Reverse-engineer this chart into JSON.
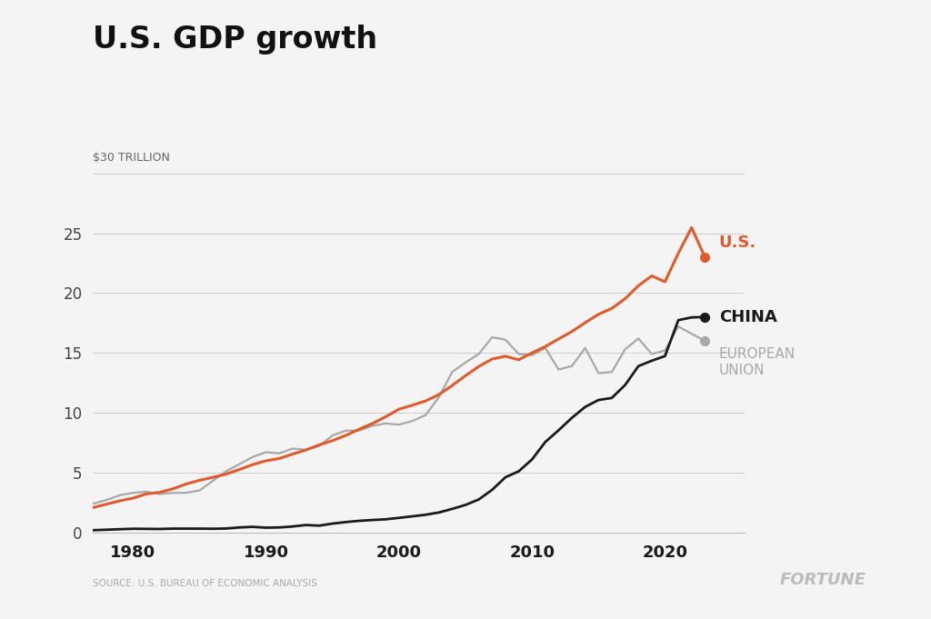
{
  "title": "U.S. GDP growth",
  "ylabel_top": "$30 TRILLION",
  "source": "SOURCE: U.S. BUREAU OF ECONOMIC ANALYSIS",
  "fortune": "FORTUNE",
  "background_color": "#f4f4f4",
  "us_color": "#e05a2b",
  "china_color": "#1a1a1a",
  "eu_color": "#a8a8a8",
  "us_label": "U.S.",
  "china_label": "CHINA",
  "eu_label": "EUROPEAN\nUNION",
  "years": [
    1977,
    1978,
    1979,
    1980,
    1981,
    1982,
    1983,
    1984,
    1985,
    1986,
    1987,
    1988,
    1989,
    1990,
    1991,
    1992,
    1993,
    1994,
    1995,
    1996,
    1997,
    1998,
    1999,
    2000,
    2001,
    2002,
    2003,
    2004,
    2005,
    2006,
    2007,
    2008,
    2009,
    2010,
    2011,
    2012,
    2013,
    2014,
    2015,
    2016,
    2017,
    2018,
    2019,
    2020,
    2021,
    2022,
    2023
  ],
  "us_gdp": [
    2.07,
    2.35,
    2.63,
    2.86,
    3.21,
    3.34,
    3.64,
    4.04,
    4.35,
    4.59,
    4.87,
    5.25,
    5.66,
    5.98,
    6.17,
    6.54,
    6.88,
    7.31,
    7.66,
    8.1,
    8.61,
    9.09,
    9.66,
    10.29,
    10.62,
    10.98,
    11.51,
    12.27,
    13.09,
    13.86,
    14.48,
    14.72,
    14.42,
    15.0,
    15.52,
    16.16,
    16.78,
    17.52,
    18.22,
    18.71,
    19.52,
    20.61,
    21.43,
    20.94,
    23.32,
    25.46,
    23.0
  ],
  "china_gdp": [
    0.18,
    0.22,
    0.26,
    0.3,
    0.29,
    0.28,
    0.31,
    0.31,
    0.31,
    0.3,
    0.32,
    0.41,
    0.46,
    0.39,
    0.41,
    0.49,
    0.61,
    0.56,
    0.73,
    0.86,
    0.96,
    1.03,
    1.09,
    1.21,
    1.34,
    1.47,
    1.66,
    1.96,
    2.29,
    2.75,
    3.55,
    4.6,
    5.1,
    6.09,
    7.55,
    8.53,
    9.57,
    10.48,
    11.06,
    11.23,
    12.31,
    13.89,
    14.34,
    14.73,
    17.73,
    17.96,
    18.0
  ],
  "eu_gdp": [
    2.4,
    2.7,
    3.1,
    3.3,
    3.4,
    3.2,
    3.3,
    3.3,
    3.5,
    4.3,
    5.1,
    5.7,
    6.3,
    6.7,
    6.6,
    7.0,
    6.9,
    7.2,
    8.1,
    8.5,
    8.5,
    8.9,
    9.1,
    9.0,
    9.3,
    9.8,
    11.3,
    13.4,
    14.2,
    14.9,
    16.3,
    16.1,
    14.9,
    14.8,
    15.4,
    13.6,
    13.9,
    15.4,
    13.3,
    13.4,
    15.3,
    16.2,
    14.9,
    15.2,
    17.2,
    16.6,
    16.0
  ],
  "ylim": [
    0,
    30
  ],
  "yticks": [
    0,
    5,
    10,
    15,
    20,
    25
  ],
  "xticks": [
    1980,
    1990,
    2000,
    2010,
    2020
  ],
  "xlim": [
    1977,
    2026
  ]
}
